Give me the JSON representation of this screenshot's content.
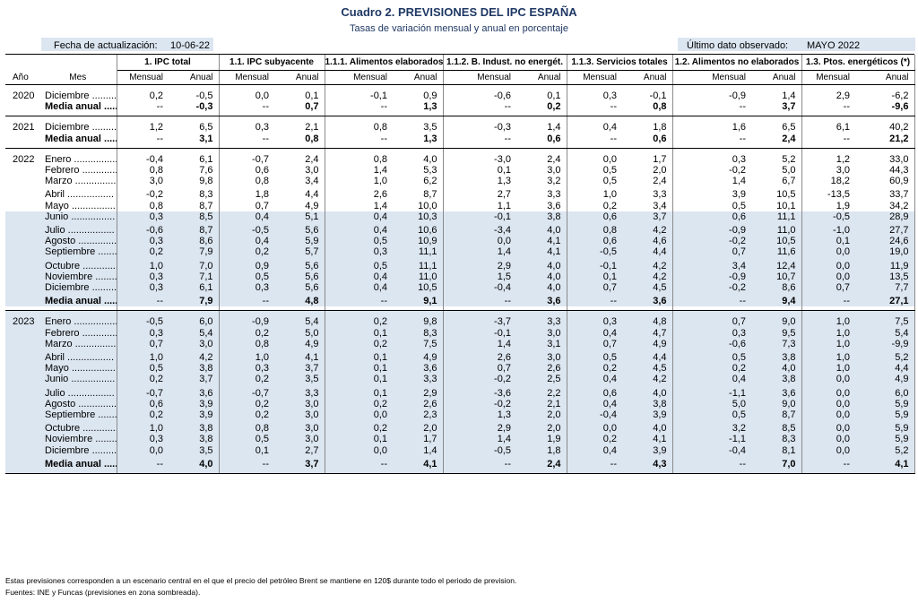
{
  "title": "Cuadro 2. PREVISIONES DEL IPC ESPAÑA",
  "subtitle": "Tasas de variación mensual y anual en porcentaje",
  "update": {
    "label": "Fecha de actualización:",
    "value": "10-06-22"
  },
  "last_observed": {
    "label": "Último dato observado:",
    "value": "MAYO 2022"
  },
  "col_year": "Año",
  "col_month": "Mes",
  "sub_labels": {
    "mensual": "Mensual",
    "anual": "Anual"
  },
  "groups": [
    "1. IPC total",
    "1.1. IPC subyacente",
    "1.1.1. Alimentos elaborados",
    "1.1.2. B. Indust. no energét.",
    "1.1.3. Servicios totales",
    "1.2. Alimentos no elaborados",
    "1.3. Ptos. energéticos (*)"
  ],
  "sections": [
    {
      "year": "2020",
      "rows": [
        {
          "m": "Diciembre .........",
          "v": [
            "0,2",
            "-0,5",
            "0,0",
            "0,1",
            "-0,1",
            "0,9",
            "-0,6",
            "0,1",
            "0,3",
            "-0,1",
            "-0,9",
            "1,4",
            "2,9",
            "-6,2"
          ]
        },
        {
          "m": "Media anual .....",
          "media": true,
          "v": [
            "--",
            "-0,3",
            "--",
            "0,7",
            "--",
            "1,3",
            "--",
            "0,2",
            "--",
            "0,8",
            "--",
            "3,7",
            "--",
            "-9,6"
          ]
        }
      ]
    },
    {
      "year": "2021",
      "rows": [
        {
          "m": "Diciembre .........",
          "v": [
            "1,2",
            "6,5",
            "0,3",
            "2,1",
            "0,8",
            "3,5",
            "-0,3",
            "1,4",
            "0,4",
            "1,8",
            "1,6",
            "6,5",
            "6,1",
            "40,2"
          ]
        },
        {
          "m": "Media anual .....",
          "media": true,
          "v": [
            "--",
            "3,1",
            "--",
            "0,8",
            "--",
            "1,3",
            "--",
            "0,6",
            "--",
            "0,6",
            "--",
            "2,4",
            "--",
            "21,2"
          ]
        }
      ]
    },
    {
      "year": "2022",
      "rows": [
        {
          "m": "Enero ................",
          "v": [
            "-0,4",
            "6,1",
            "-0,7",
            "2,4",
            "0,8",
            "4,0",
            "-3,0",
            "2,4",
            "0,0",
            "1,7",
            "0,3",
            "5,2",
            "1,2",
            "33,0"
          ]
        },
        {
          "m": "Febrero .............",
          "v": [
            "0,8",
            "7,6",
            "0,6",
            "3,0",
            "1,4",
            "5,3",
            "0,1",
            "3,0",
            "0,5",
            "2,0",
            "-0,2",
            "5,0",
            "3,0",
            "44,3"
          ]
        },
        {
          "m": "Marzo ...............",
          "v": [
            "3,0",
            "9,8",
            "0,8",
            "3,4",
            "1,0",
            "6,2",
            "1,3",
            "3,2",
            "0,5",
            "2,4",
            "1,4",
            "6,7",
            "18,2",
            "60,9"
          ],
          "gap": true
        },
        {
          "m": "Abril .................",
          "v": [
            "-0,2",
            "8,3",
            "1,8",
            "4,4",
            "2,6",
            "8,7",
            "2,7",
            "3,3",
            "1,0",
            "3,3",
            "3,9",
            "10,5",
            "-13,5",
            "33,7"
          ]
        },
        {
          "m": "Mayo ................",
          "v": [
            "0,8",
            "8,7",
            "0,7",
            "4,9",
            "1,4",
            "10,0",
            "1,1",
            "3,6",
            "0,2",
            "3,4",
            "0,5",
            "10,1",
            "1,9",
            "34,2"
          ]
        },
        {
          "m": "Junio ................",
          "shade": true,
          "v": [
            "0,3",
            "8,5",
            "0,4",
            "5,1",
            "0,4",
            "10,3",
            "-0,1",
            "3,8",
            "0,6",
            "3,7",
            "0,6",
            "11,1",
            "-0,5",
            "28,9"
          ],
          "gap": true
        },
        {
          "m": "Julio .................",
          "shade": true,
          "v": [
            "-0,6",
            "8,7",
            "-0,5",
            "5,6",
            "0,4",
            "10,6",
            "-3,4",
            "4,0",
            "0,8",
            "4,2",
            "-0,9",
            "11,0",
            "-1,0",
            "27,7"
          ]
        },
        {
          "m": "Agosto ..............",
          "shade": true,
          "v": [
            "0,3",
            "8,6",
            "0,4",
            "5,9",
            "0,5",
            "10,9",
            "0,0",
            "4,1",
            "0,6",
            "4,6",
            "-0,2",
            "10,5",
            "0,1",
            "24,6"
          ]
        },
        {
          "m": "Septiembre ........",
          "shade": true,
          "v": [
            "0,2",
            "7,9",
            "0,2",
            "5,7",
            "0,3",
            "11,1",
            "1,4",
            "4,1",
            "-0,5",
            "4,4",
            "0,7",
            "11,6",
            "0,0",
            "19,0"
          ],
          "gap": true
        },
        {
          "m": "Octubre .............",
          "shade": true,
          "v": [
            "1,0",
            "7,0",
            "0,9",
            "5,6",
            "0,5",
            "11,1",
            "2,9",
            "4,0",
            "-0,1",
            "4,2",
            "3,4",
            "12,4",
            "0,0",
            "11,9"
          ]
        },
        {
          "m": "Noviembre .........",
          "shade": true,
          "v": [
            "0,3",
            "7,1",
            "0,5",
            "5,6",
            "0,4",
            "11,0",
            "1,5",
            "4,0",
            "0,1",
            "4,2",
            "-0,9",
            "10,7",
            "0,0",
            "13,5"
          ]
        },
        {
          "m": "Diciembre .........",
          "shade": true,
          "v": [
            "0,3",
            "6,1",
            "0,3",
            "5,6",
            "0,4",
            "10,5",
            "-0,4",
            "4,0",
            "0,7",
            "4,5",
            "-0,2",
            "8,6",
            "0,7",
            "7,7"
          ],
          "gap": true
        },
        {
          "m": "Media anual .....",
          "media": true,
          "shade": true,
          "v": [
            "--",
            "7,9",
            "--",
            "4,8",
            "--",
            "9,1",
            "--",
            "3,6",
            "--",
            "3,6",
            "--",
            "9,4",
            "--",
            "27,1"
          ]
        }
      ]
    },
    {
      "year": "2023",
      "shade": true,
      "rows": [
        {
          "m": "Enero ................",
          "shade": true,
          "v": [
            "-0,5",
            "6,0",
            "-0,9",
            "5,4",
            "0,2",
            "9,8",
            "-3,7",
            "3,3",
            "0,3",
            "4,8",
            "0,7",
            "9,0",
            "1,0",
            "7,5"
          ]
        },
        {
          "m": "Febrero .............",
          "shade": true,
          "v": [
            "0,3",
            "5,4",
            "0,2",
            "5,0",
            "0,1",
            "8,3",
            "-0,1",
            "3,0",
            "0,4",
            "4,7",
            "0,3",
            "9,5",
            "1,0",
            "5,4"
          ]
        },
        {
          "m": "Marzo ...............",
          "shade": true,
          "v": [
            "0,7",
            "3,0",
            "0,8",
            "4,9",
            "0,2",
            "7,5",
            "1,4",
            "3,1",
            "0,7",
            "4,9",
            "-0,6",
            "7,3",
            "1,0",
            "-9,9"
          ],
          "gap": true
        },
        {
          "m": "Abril .................",
          "shade": true,
          "v": [
            "1,0",
            "4,2",
            "1,0",
            "4,1",
            "0,1",
            "4,9",
            "2,6",
            "3,0",
            "0,5",
            "4,4",
            "0,5",
            "3,8",
            "1,0",
            "5,2"
          ]
        },
        {
          "m": "Mayo ................",
          "shade": true,
          "v": [
            "0,5",
            "3,8",
            "0,3",
            "3,7",
            "0,1",
            "3,6",
            "0,7",
            "2,6",
            "0,2",
            "4,5",
            "0,2",
            "4,0",
            "1,0",
            "4,4"
          ]
        },
        {
          "m": "Junio ................",
          "shade": true,
          "v": [
            "0,2",
            "3,7",
            "0,2",
            "3,5",
            "0,1",
            "3,3",
            "-0,2",
            "2,5",
            "0,4",
            "4,2",
            "0,4",
            "3,8",
            "0,0",
            "4,9"
          ],
          "gap": true
        },
        {
          "m": "Julio .................",
          "shade": true,
          "v": [
            "-0,7",
            "3,6",
            "-0,7",
            "3,3",
            "0,1",
            "2,9",
            "-3,6",
            "2,2",
            "0,6",
            "4,0",
            "-1,1",
            "3,6",
            "0,0",
            "6,0"
          ]
        },
        {
          "m": "Agosto ..............",
          "shade": true,
          "v": [
            "0,6",
            "3,9",
            "0,2",
            "3,0",
            "0,2",
            "2,6",
            "-0,2",
            "2,1",
            "0,4",
            "3,8",
            "5,0",
            "9,0",
            "0,0",
            "5,9"
          ]
        },
        {
          "m": "Septiembre ........",
          "shade": true,
          "v": [
            "0,2",
            "3,9",
            "0,2",
            "3,0",
            "0,0",
            "2,3",
            "1,3",
            "2,0",
            "-0,4",
            "3,9",
            "0,5",
            "8,7",
            "0,0",
            "5,9"
          ],
          "gap": true
        },
        {
          "m": "Octubre .............",
          "shade": true,
          "v": [
            "1,0",
            "3,8",
            "0,8",
            "3,0",
            "0,2",
            "2,0",
            "2,9",
            "2,0",
            "0,0",
            "4,0",
            "3,2",
            "8,5",
            "0,0",
            "5,9"
          ]
        },
        {
          "m": "Noviembre .........",
          "shade": true,
          "v": [
            "0,3",
            "3,8",
            "0,5",
            "3,0",
            "0,1",
            "1,7",
            "1,4",
            "1,9",
            "0,2",
            "4,1",
            "-1,1",
            "8,3",
            "0,0",
            "5,9"
          ]
        },
        {
          "m": "Diciembre .........",
          "shade": true,
          "v": [
            "0,0",
            "3,5",
            "0,1",
            "2,7",
            "0,0",
            "1,4",
            "-0,5",
            "1,8",
            "0,4",
            "3,9",
            "-0,4",
            "8,1",
            "0,0",
            "5,2"
          ],
          "gap": true
        },
        {
          "m": "Media anual .....",
          "media": true,
          "shade": true,
          "v": [
            "--",
            "4,0",
            "--",
            "3,7",
            "--",
            "4,1",
            "--",
            "2,4",
            "--",
            "4,3",
            "--",
            "7,0",
            "--",
            "4,1"
          ]
        }
      ]
    }
  ],
  "notes": [
    "Estas previsiones corresponden a un escenario central en el que el precio del petróleo Brent se mantiene en 120$ durante todo el periodo de prevision.",
    "Fuentes: INE y Funcas (previsiones en zona sombreada)."
  ],
  "colors": {
    "title": "#1f3864",
    "shade": "#dce6f1"
  }
}
